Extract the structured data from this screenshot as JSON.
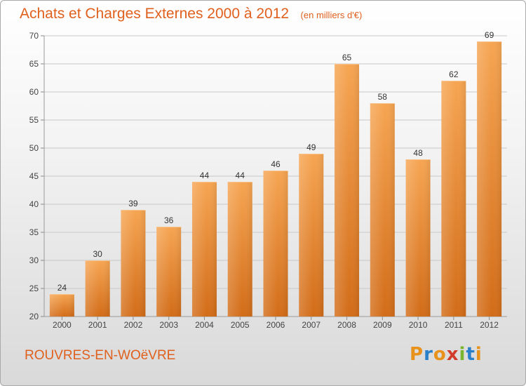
{
  "chart_data": {
    "type": "bar",
    "title": "Achats et Charges Externes 2000 à 2012",
    "subtitle": "(en milliers d'€)",
    "categories": [
      "2000",
      "2001",
      "2002",
      "2003",
      "2004",
      "2005",
      "2006",
      "2007",
      "2008",
      "2009",
      "2010",
      "2011",
      "2012"
    ],
    "values": [
      24,
      30,
      39,
      36,
      44,
      44,
      46,
      49,
      65,
      58,
      48,
      62,
      69
    ],
    "ylim": [
      20,
      70
    ],
    "yticks": [
      20,
      25,
      30,
      35,
      40,
      45,
      50,
      55,
      60,
      65,
      70
    ],
    "grid": true,
    "bar_color_top": "#f6a552",
    "bar_color_bottom": "#d26c18"
  },
  "footer": {
    "commune": "ROUVRES-EN-WOëVRE"
  },
  "logo": {
    "letters": [
      "P",
      "r",
      "o",
      "x",
      "i",
      "t",
      "i"
    ],
    "colors": [
      "#e8921c",
      "#2a7fc9",
      "#e8921c",
      "#d23a2a",
      "#7ab52e",
      "#2a7fc9",
      "#e8921c"
    ]
  }
}
